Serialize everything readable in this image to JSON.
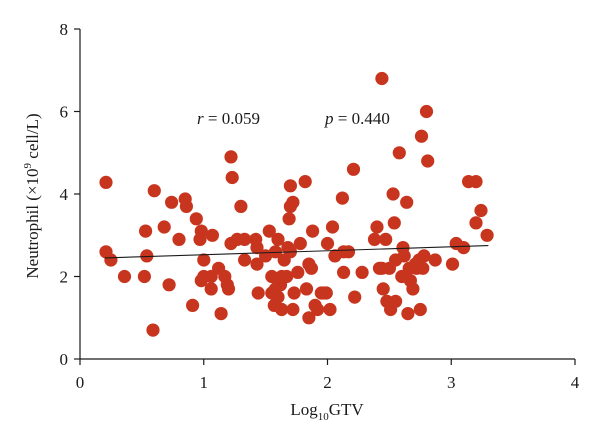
{
  "chart_data": {
    "type": "scatter",
    "xlabel": {
      "prefix": "Log",
      "sub": "10",
      "suffix": "GTV"
    },
    "ylabel": {
      "prefix": "Neutrophil (×10",
      "sup": "9",
      "suffix": " cell/L)"
    },
    "xlim": [
      0,
      4
    ],
    "ylim": [
      0,
      8
    ],
    "x_ticks": [
      "0",
      "1",
      "2",
      "3",
      "4"
    ],
    "y_ticks": [
      "0",
      "2",
      "4",
      "6",
      "8"
    ],
    "annotations": {
      "r_label": "r",
      "r_value": " = 0.059",
      "p_label": "p",
      "p_value": " = 0.440"
    },
    "point_color": "#c8351e",
    "fit_line": {
      "x": [
        0.2,
        3.3
      ],
      "y": [
        2.45,
        2.75
      ]
    },
    "points": [
      {
        "x": 0.21,
        "y": 4.28
      },
      {
        "x": 0.21,
        "y": 2.6
      },
      {
        "x": 0.25,
        "y": 2.4
      },
      {
        "x": 0.36,
        "y": 2.0
      },
      {
        "x": 0.52,
        "y": 2.0
      },
      {
        "x": 0.53,
        "y": 3.1
      },
      {
        "x": 0.54,
        "y": 2.5
      },
      {
        "x": 0.6,
        "y": 4.08
      },
      {
        "x": 0.59,
        "y": 0.7
      },
      {
        "x": 0.68,
        "y": 3.2
      },
      {
        "x": 0.72,
        "y": 1.8
      },
      {
        "x": 0.74,
        "y": 3.8
      },
      {
        "x": 0.8,
        "y": 2.9
      },
      {
        "x": 0.85,
        "y": 3.88
      },
      {
        "x": 0.86,
        "y": 3.7
      },
      {
        "x": 0.91,
        "y": 1.3
      },
      {
        "x": 0.94,
        "y": 3.4
      },
      {
        "x": 0.97,
        "y": 2.9
      },
      {
        "x": 0.98,
        "y": 3.1
      },
      {
        "x": 0.98,
        "y": 1.9
      },
      {
        "x": 1.0,
        "y": 2.4
      },
      {
        "x": 1.0,
        "y": 2.0
      },
      {
        "x": 1.06,
        "y": 1.7
      },
      {
        "x": 1.06,
        "y": 2.0
      },
      {
        "x": 1.07,
        "y": 3.0
      },
      {
        "x": 1.12,
        "y": 2.2
      },
      {
        "x": 1.14,
        "y": 1.1
      },
      {
        "x": 1.17,
        "y": 2.0
      },
      {
        "x": 1.19,
        "y": 1.8
      },
      {
        "x": 1.2,
        "y": 1.7
      },
      {
        "x": 1.22,
        "y": 2.8
      },
      {
        "x": 1.22,
        "y": 4.9
      },
      {
        "x": 1.23,
        "y": 4.4
      },
      {
        "x": 1.27,
        "y": 2.9
      },
      {
        "x": 1.3,
        "y": 3.7
      },
      {
        "x": 1.33,
        "y": 2.4
      },
      {
        "x": 1.33,
        "y": 2.9
      },
      {
        "x": 1.42,
        "y": 2.9
      },
      {
        "x": 1.43,
        "y": 2.3
      },
      {
        "x": 1.43,
        "y": 2.7
      },
      {
        "x": 1.44,
        "y": 1.6
      },
      {
        "x": 1.5,
        "y": 2.5
      },
      {
        "x": 1.53,
        "y": 3.1
      },
      {
        "x": 1.55,
        "y": 2.0
      },
      {
        "x": 1.55,
        "y": 1.6
      },
      {
        "x": 1.57,
        "y": 1.3
      },
      {
        "x": 1.58,
        "y": 1.7
      },
      {
        "x": 1.58,
        "y": 2.6
      },
      {
        "x": 1.6,
        "y": 2.9
      },
      {
        "x": 1.6,
        "y": 1.5
      },
      {
        "x": 1.62,
        "y": 1.8
      },
      {
        "x": 1.63,
        "y": 1.2
      },
      {
        "x": 1.63,
        "y": 2.0
      },
      {
        "x": 1.65,
        "y": 2.4
      },
      {
        "x": 1.67,
        "y": 2.0
      },
      {
        "x": 1.68,
        "y": 2.7
      },
      {
        "x": 1.69,
        "y": 3.4
      },
      {
        "x": 1.7,
        "y": 3.7
      },
      {
        "x": 1.7,
        "y": 4.2
      },
      {
        "x": 1.7,
        "y": 2.6
      },
      {
        "x": 1.72,
        "y": 3.8
      },
      {
        "x": 1.72,
        "y": 1.2
      },
      {
        "x": 1.73,
        "y": 1.6
      },
      {
        "x": 1.76,
        "y": 2.1
      },
      {
        "x": 1.78,
        "y": 2.8
      },
      {
        "x": 1.82,
        "y": 4.3
      },
      {
        "x": 1.83,
        "y": 1.7
      },
      {
        "x": 1.85,
        "y": 2.3
      },
      {
        "x": 1.85,
        "y": 1.0
      },
      {
        "x": 1.87,
        "y": 2.2
      },
      {
        "x": 1.88,
        "y": 3.1
      },
      {
        "x": 1.9,
        "y": 1.3
      },
      {
        "x": 1.92,
        "y": 1.2
      },
      {
        "x": 1.95,
        "y": 1.6
      },
      {
        "x": 1.97,
        "y": 1.6
      },
      {
        "x": 1.99,
        "y": 1.6
      },
      {
        "x": 2.0,
        "y": 2.8
      },
      {
        "x": 2.02,
        "y": 1.2
      },
      {
        "x": 2.04,
        "y": 3.2
      },
      {
        "x": 2.06,
        "y": 2.5
      },
      {
        "x": 2.12,
        "y": 3.9
      },
      {
        "x": 2.13,
        "y": 2.1
      },
      {
        "x": 2.13,
        "y": 2.6
      },
      {
        "x": 2.17,
        "y": 2.6
      },
      {
        "x": 2.21,
        "y": 4.6
      },
      {
        "x": 2.22,
        "y": 1.5
      },
      {
        "x": 2.28,
        "y": 2.1
      },
      {
        "x": 2.38,
        "y": 2.9
      },
      {
        "x": 2.4,
        "y": 3.2
      },
      {
        "x": 2.44,
        "y": 6.8
      },
      {
        "x": 2.44,
        "y": 2.2
      },
      {
        "x": 2.45,
        "y": 1.7
      },
      {
        "x": 2.47,
        "y": 2.9
      },
      {
        "x": 2.48,
        "y": 1.4
      },
      {
        "x": 2.5,
        "y": 2.2
      },
      {
        "x": 2.51,
        "y": 1.2
      },
      {
        "x": 2.53,
        "y": 4.0
      },
      {
        "x": 2.54,
        "y": 3.3
      },
      {
        "x": 2.55,
        "y": 2.4
      },
      {
        "x": 2.55,
        "y": 1.4
      },
      {
        "x": 2.58,
        "y": 5.0
      },
      {
        "x": 2.6,
        "y": 2.0
      },
      {
        "x": 2.61,
        "y": 2.7
      },
      {
        "x": 2.62,
        "y": 2.5
      },
      {
        "x": 2.64,
        "y": 3.8
      },
      {
        "x": 2.66,
        "y": 2.2
      },
      {
        "x": 2.67,
        "y": 1.9
      },
      {
        "x": 2.69,
        "y": 1.7
      },
      {
        "x": 2.71,
        "y": 2.3
      },
      {
        "x": 2.72,
        "y": 2.2
      },
      {
        "x": 2.74,
        "y": 2.4
      },
      {
        "x": 2.76,
        "y": 5.4
      },
      {
        "x": 2.77,
        "y": 2.2
      },
      {
        "x": 2.78,
        "y": 2.5
      },
      {
        "x": 2.8,
        "y": 6.0
      },
      {
        "x": 2.81,
        "y": 4.8
      },
      {
        "x": 2.87,
        "y": 2.4
      },
      {
        "x": 2.65,
        "y": 1.1
      },
      {
        "x": 2.75,
        "y": 1.2
      },
      {
        "x": 3.01,
        "y": 2.3
      },
      {
        "x": 3.04,
        "y": 2.8
      },
      {
        "x": 3.1,
        "y": 2.7
      },
      {
        "x": 3.14,
        "y": 4.3
      },
      {
        "x": 3.2,
        "y": 4.3
      },
      {
        "x": 3.2,
        "y": 3.3
      },
      {
        "x": 3.24,
        "y": 3.6
      },
      {
        "x": 3.29,
        "y": 3.0
      },
      {
        "x": 2.42,
        "y": 2.2
      }
    ]
  }
}
